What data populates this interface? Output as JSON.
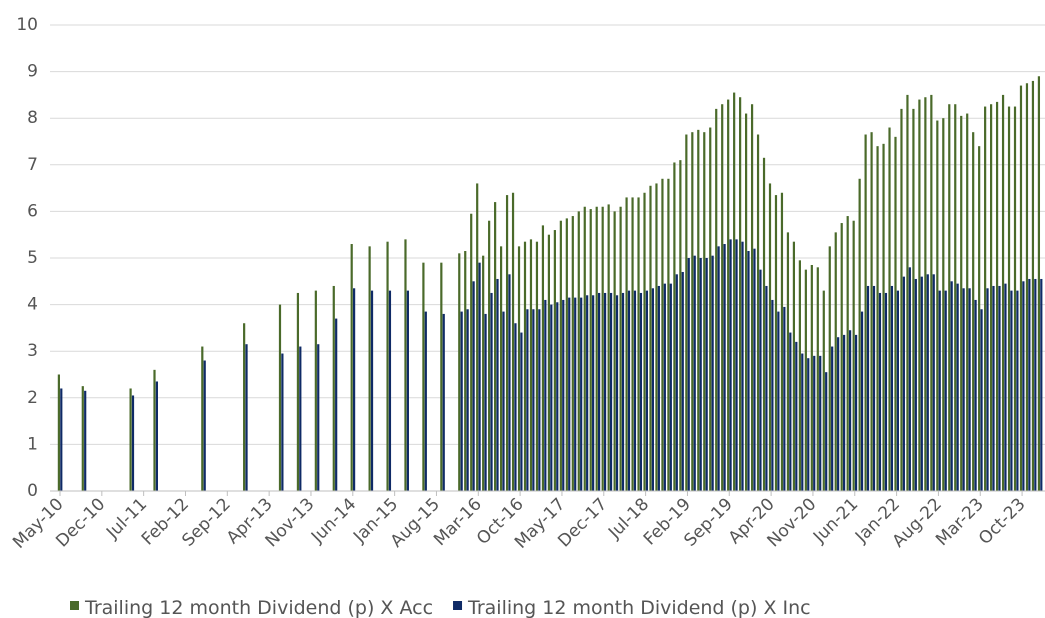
{
  "chart_data": {
    "type": "bar",
    "categories": [
      "May-10",
      null,
      null,
      null,
      null,
      null,
      null,
      "Dec-10",
      null,
      null,
      null,
      null,
      null,
      null,
      "Jul-11",
      null,
      null,
      null,
      null,
      null,
      null,
      "Feb-12",
      null,
      null,
      null,
      null,
      null,
      null,
      "Sep-12",
      null,
      null,
      null,
      null,
      null,
      null,
      "Apr-13",
      null,
      null,
      null,
      null,
      null,
      null,
      "Nov-13",
      null,
      null,
      null,
      null,
      null,
      null,
      "Jun-14",
      null,
      null,
      null,
      null,
      null,
      null,
      "Jan-15",
      null,
      null,
      null,
      null,
      null,
      null,
      "Aug-15",
      null,
      null,
      null,
      null,
      null,
      null,
      "Mar-16",
      null,
      null,
      null,
      null,
      null,
      null,
      "Oct-16",
      null,
      null,
      null,
      null,
      null,
      null,
      "May-17",
      null,
      null,
      null,
      null,
      null,
      null,
      "Dec-17",
      null,
      null,
      null,
      null,
      null,
      null,
      "Jul-18",
      null,
      null,
      null,
      null,
      null,
      null,
      "Feb-19",
      null,
      null,
      null,
      null,
      null,
      null,
      "Sep-19",
      null,
      null,
      null,
      null,
      null,
      null,
      "Apr-20",
      null,
      null,
      null,
      null,
      null,
      null,
      "Nov-20",
      null,
      null,
      null,
      null,
      null,
      null,
      "Jun-21",
      null,
      null,
      null,
      null,
      null,
      null,
      "Jan-22",
      null,
      null,
      null,
      null,
      null,
      null,
      "Aug-22",
      null,
      null,
      null,
      null,
      null,
      null,
      "Mar-23",
      null,
      null,
      null,
      null,
      null,
      null,
      "Oct-23",
      null,
      null,
      null
    ],
    "series": [
      {
        "name": "Trailing 12 month Dividend (p) X Acc",
        "color": "#4a6a2a",
        "values": [
          2.5,
          null,
          null,
          null,
          2.25,
          null,
          null,
          null,
          null,
          null,
          null,
          null,
          2.2,
          null,
          null,
          null,
          2.6,
          null,
          null,
          null,
          null,
          null,
          null,
          null,
          3.1,
          null,
          null,
          null,
          null,
          null,
          null,
          3.6,
          null,
          null,
          null,
          null,
          null,
          4,
          null,
          null,
          4.25,
          null,
          null,
          4.3,
          null,
          null,
          4.4,
          null,
          null,
          5.3,
          null,
          null,
          5.25,
          null,
          null,
          5.35,
          null,
          null,
          5.4,
          null,
          null,
          4.9,
          null,
          null,
          4.9,
          null,
          null,
          5.1,
          5.15,
          5.95,
          6.6,
          5.05,
          5.8,
          6.2,
          5.25,
          6.35,
          6.4,
          5.25,
          5.35,
          5.4,
          5.35,
          5.7,
          5.5,
          5.6,
          5.8,
          5.85,
          5.9,
          6.0,
          6.1,
          6.05,
          6.1,
          6.1,
          6.15,
          6.0,
          6.1,
          6.3,
          6.3,
          6.3,
          6.4,
          6.55,
          6.6,
          6.7,
          6.7,
          7.05,
          7.1,
          7.65,
          7.7,
          7.75,
          7.7,
          7.8,
          8.2,
          8.3,
          8.4,
          8.55,
          8.45,
          8.1,
          8.3,
          7.65,
          7.15,
          6.6,
          6.35,
          6.4,
          5.55,
          5.35,
          4.95,
          4.75,
          4.85,
          4.8,
          4.3,
          5.25,
          5.55,
          5.75,
          5.9,
          5.8,
          6.7,
          7.65,
          7.7,
          7.4,
          7.45,
          7.8,
          7.6,
          8.2,
          8.5,
          8.2,
          8.4,
          8.45,
          8.5,
          7.95,
          8.0,
          8.3,
          8.3,
          8.05,
          8.1,
          7.7,
          7.4,
          8.25,
          8.3,
          8.35,
          8.5,
          8.25,
          8.25,
          8.7,
          8.75,
          8.8,
          8.9
        ]
      },
      {
        "name": "Trailing 12 month Dividend (p) X Inc",
        "color": "#0f2a66",
        "values": [
          2.2,
          null,
          null,
          null,
          2.15,
          null,
          null,
          null,
          null,
          null,
          null,
          null,
          2.05,
          null,
          null,
          null,
          2.35,
          null,
          null,
          null,
          null,
          null,
          null,
          null,
          2.8,
          null,
          null,
          null,
          null,
          null,
          null,
          3.15,
          null,
          null,
          null,
          null,
          null,
          2.95,
          null,
          null,
          3.1,
          null,
          null,
          3.15,
          null,
          null,
          3.7,
          null,
          null,
          4.35,
          null,
          null,
          4.3,
          null,
          null,
          4.3,
          null,
          null,
          4.3,
          null,
          null,
          3.85,
          null,
          null,
          3.8,
          null,
          null,
          3.85,
          3.9,
          4.5,
          4.9,
          3.8,
          4.25,
          4.55,
          3.85,
          4.65,
          3.6,
          3.4,
          3.9,
          3.9,
          3.9,
          4.1,
          4.0,
          4.05,
          4.1,
          4.15,
          4.15,
          4.15,
          4.2,
          4.2,
          4.25,
          4.25,
          4.25,
          4.2,
          4.25,
          4.3,
          4.3,
          4.25,
          4.3,
          4.35,
          4.4,
          4.45,
          4.45,
          4.65,
          4.7,
          5.0,
          5.05,
          5.0,
          5.0,
          5.05,
          5.25,
          5.3,
          5.4,
          5.4,
          5.35,
          5.15,
          5.2,
          4.75,
          4.4,
          4.1,
          3.85,
          3.95,
          3.4,
          3.2,
          2.95,
          2.85,
          2.9,
          2.9,
          2.55,
          3.1,
          3.3,
          3.35,
          3.45,
          3.35,
          3.85,
          4.4,
          4.4,
          4.25,
          4.25,
          4.4,
          4.3,
          4.6,
          4.8,
          4.55,
          4.6,
          4.65,
          4.65,
          4.3,
          4.3,
          4.5,
          4.45,
          4.35,
          4.35,
          4.1,
          3.9,
          4.35,
          4.4,
          4.4,
          4.45,
          4.3,
          4.3,
          4.5,
          4.55,
          4.55,
          4.55
        ]
      }
    ],
    "ylim": [
      0,
      10
    ],
    "yticks": [
      0,
      1,
      2,
      3,
      4,
      5,
      6,
      7,
      8,
      9,
      10
    ],
    "grid": true,
    "legend": "bottom"
  }
}
